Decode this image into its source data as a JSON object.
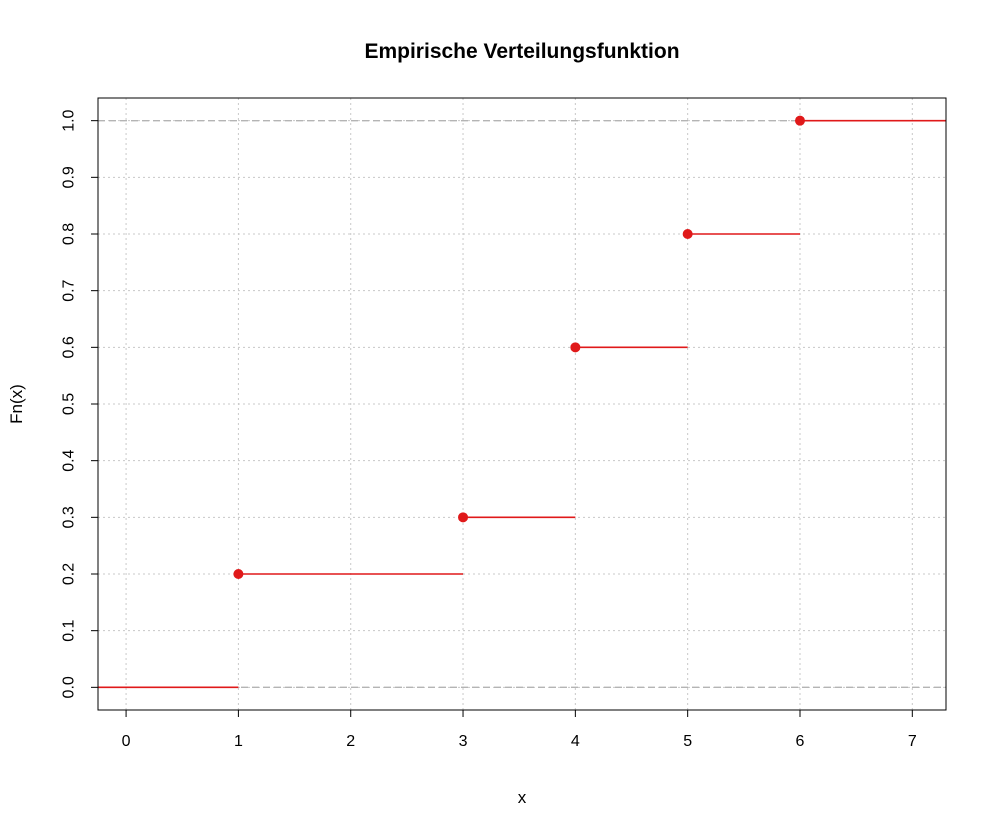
{
  "chart_data": {
    "type": "line",
    "subtype": "step",
    "title": "Empirische Verteilungsfunktion",
    "xlabel": "x",
    "ylabel": "Fn(x)",
    "xlim": [
      -0.25,
      7.3
    ],
    "ylim": [
      -0.04,
      1.04
    ],
    "x_ticks": [
      0,
      1,
      2,
      3,
      4,
      5,
      6,
      7
    ],
    "y_ticks": [
      0.0,
      0.1,
      0.2,
      0.3,
      0.4,
      0.5,
      0.6,
      0.7,
      0.8,
      0.9,
      1.0
    ],
    "y_tick_labels": [
      "0.0",
      "0.1",
      "0.2",
      "0.3",
      "0.4",
      "0.5",
      "0.6",
      "0.7",
      "0.8",
      "0.9",
      "1.0"
    ],
    "grid": true,
    "series": [
      {
        "steps": [
          {
            "x_start": -0.25,
            "x_end": 1,
            "y": 0.0
          },
          {
            "x_start": 1,
            "x_end": 3,
            "y": 0.2
          },
          {
            "x_start": 3,
            "x_end": 4,
            "y": 0.3
          },
          {
            "x_start": 4,
            "x_end": 5,
            "y": 0.6
          },
          {
            "x_start": 5,
            "x_end": 6,
            "y": 0.8
          },
          {
            "x_start": 6,
            "x_end": 7.3,
            "y": 1.0
          }
        ],
        "points": [
          {
            "x": 1,
            "y": 0.2
          },
          {
            "x": 3,
            "y": 0.3
          },
          {
            "x": 4,
            "y": 0.6
          },
          {
            "x": 5,
            "y": 0.8
          },
          {
            "x": 6,
            "y": 1.0
          }
        ],
        "color": "#e0191a"
      }
    ],
    "reference_lines_y": [
      0,
      1
    ],
    "colors": {
      "series": "#e0191a",
      "grid": "#c8c8c8",
      "reference": "#b4b4b4",
      "axis": "#000000"
    }
  }
}
